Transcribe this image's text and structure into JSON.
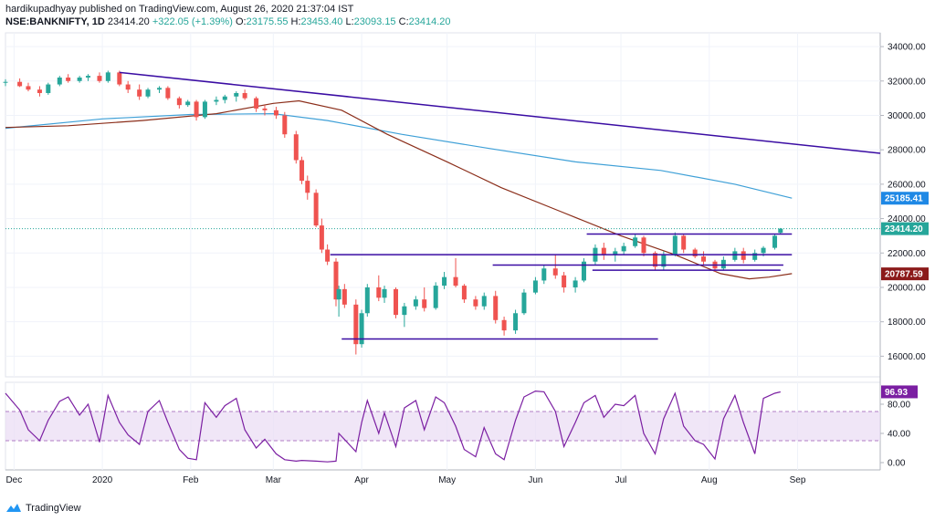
{
  "header": {
    "publisher_line": "hardikupadhyay published on TradingView.com, August 26, 2020 21:37:04 IST",
    "symbol_line": "NSE:BANKNIFTY, 1D",
    "last": "23414.20",
    "change": "+322.05 (+1.39%)",
    "o_label": "O:",
    "o": "23175.55",
    "h_label": "H:",
    "h": "23453.40",
    "l_label": "L:",
    "l": "23093.15",
    "c_label": "C:",
    "c": "23414.20"
  },
  "footer": {
    "brand": "TradingView"
  },
  "colors": {
    "up": "#26a69a",
    "down": "#ef5350",
    "ma_short": "#8b2e1a",
    "ma_long": "#3fa0d7",
    "trendline": "#3a0ca3",
    "rsi": "#7b1fa2",
    "rsi_band": "#e9dbf3"
  },
  "chart_data": [
    {
      "type": "candlestick",
      "title": "NSE:BANKNIFTY, 1D",
      "ylim": [
        14800,
        34800
      ],
      "y_ticks": [
        "16000.00",
        "18000.00",
        "20000.00",
        "22000.00",
        "24000.00",
        "26000.00",
        "28000.00",
        "30000.00",
        "32000.00",
        "34000.00"
      ],
      "x_ticks": [
        "Dec",
        "2020",
        "Feb",
        "Mar",
        "Apr",
        "May",
        "Jun",
        "Jul",
        "Aug",
        "Sep"
      ],
      "x_range": [
        "2019-11-28",
        "2020-09-30"
      ],
      "grid": true,
      "candles": [
        [
          "2019-11-28",
          31900,
          32100,
          31700,
          31950
        ],
        [
          "2019-12-03",
          31950,
          32150,
          31650,
          31700
        ],
        [
          "2019-12-06",
          31700,
          31900,
          31400,
          31500
        ],
        [
          "2019-12-10",
          31500,
          31700,
          31100,
          31300
        ],
        [
          "2019-12-13",
          31300,
          31900,
          31200,
          31800
        ],
        [
          "2019-12-17",
          31800,
          32300,
          31700,
          32200
        ],
        [
          "2019-12-20",
          32200,
          32400,
          31900,
          32000
        ],
        [
          "2019-12-24",
          32000,
          32300,
          31900,
          32200
        ],
        [
          "2019-12-27",
          32200,
          32400,
          32000,
          32300
        ],
        [
          "2019-12-31",
          32300,
          32500,
          31900,
          32000
        ],
        [
          "2020-01-03",
          32000,
          32600,
          31900,
          32500
        ],
        [
          "2020-01-07",
          32500,
          32600,
          31700,
          31800
        ],
        [
          "2020-01-10",
          31800,
          32000,
          31300,
          31500
        ],
        [
          "2020-01-14",
          31500,
          31800,
          30900,
          31100
        ],
        [
          "2020-01-17",
          31100,
          31600,
          31000,
          31500
        ],
        [
          "2020-01-21",
          31500,
          31700,
          31300,
          31600
        ],
        [
          "2020-01-24",
          31600,
          31700,
          30900,
          31000
        ],
        [
          "2020-01-28",
          31000,
          31100,
          30400,
          30600
        ],
        [
          "2020-01-31",
          30600,
          30900,
          30500,
          30800
        ],
        [
          "2020-02-03",
          30800,
          30900,
          29700,
          29900
        ],
        [
          "2020-02-06",
          29900,
          30900,
          29800,
          30800
        ],
        [
          "2020-02-10",
          30800,
          31100,
          30600,
          30900
        ],
        [
          "2020-02-13",
          30900,
          31200,
          30700,
          31100
        ],
        [
          "2020-02-17",
          31100,
          31400,
          30800,
          31300
        ],
        [
          "2020-02-20",
          31300,
          31500,
          30900,
          31000
        ],
        [
          "2020-02-24",
          31000,
          31100,
          30200,
          30400
        ],
        [
          "2020-02-27",
          30400,
          30600,
          30000,
          30300
        ],
        [
          "2020-03-02",
          30300,
          30500,
          29800,
          30000
        ],
        [
          "2020-03-05",
          30000,
          30200,
          28700,
          28900
        ],
        [
          "2020-03-09",
          28900,
          29100,
          27200,
          27400
        ],
        [
          "2020-03-11",
          27400,
          27600,
          26000,
          26200
        ],
        [
          "2020-03-13",
          26200,
          26500,
          25100,
          25500
        ],
        [
          "2020-03-16",
          25500,
          25700,
          23500,
          23600
        ],
        [
          "2020-03-18",
          23600,
          24000,
          22000,
          22200
        ],
        [
          "2020-03-20",
          22200,
          22500,
          21300,
          21500
        ],
        [
          "2020-03-23",
          21500,
          21700,
          18900,
          19300
        ],
        [
          "2020-03-24",
          19300,
          20100,
          18300,
          19900
        ],
        [
          "2020-03-26",
          19900,
          20200,
          18800,
          19000
        ],
        [
          "2020-03-30",
          19000,
          19300,
          16100,
          16700
        ],
        [
          "2020-04-01",
          16700,
          18700,
          16500,
          18500
        ],
        [
          "2020-04-03",
          18500,
          20200,
          18300,
          20000
        ],
        [
          "2020-04-07",
          20000,
          20700,
          19200,
          19400
        ],
        [
          "2020-04-09",
          19400,
          20100,
          19100,
          19900
        ],
        [
          "2020-04-13",
          19900,
          20000,
          18200,
          18400
        ],
        [
          "2020-04-16",
          18400,
          19100,
          17700,
          18900
        ],
        [
          "2020-04-20",
          18900,
          19500,
          18700,
          19300
        ],
        [
          "2020-04-23",
          19300,
          20000,
          18600,
          18800
        ],
        [
          "2020-04-27",
          18800,
          20300,
          18700,
          20100
        ],
        [
          "2020-04-30",
          20100,
          20900,
          19900,
          20600
        ],
        [
          "2020-05-04",
          20600,
          21700,
          20000,
          20100
        ],
        [
          "2020-05-07",
          20100,
          20200,
          19100,
          19300
        ],
        [
          "2020-05-11",
          19300,
          19500,
          18700,
          18900
        ],
        [
          "2020-05-14",
          18900,
          19700,
          18700,
          19500
        ],
        [
          "2020-05-18",
          19500,
          19800,
          17900,
          18100
        ],
        [
          "2020-05-21",
          18100,
          18300,
          17200,
          17500
        ],
        [
          "2020-05-25",
          17500,
          18700,
          17300,
          18500
        ],
        [
          "2020-05-28",
          18500,
          19900,
          18400,
          19700
        ],
        [
          "2020-06-01",
          19700,
          20600,
          19600,
          20400
        ],
        [
          "2020-06-04",
          20400,
          21300,
          20200,
          21100
        ],
        [
          "2020-06-08",
          21100,
          21900,
          20500,
          20700
        ],
        [
          "2020-06-11",
          20700,
          20900,
          19700,
          20000
        ],
        [
          "2020-06-15",
          20000,
          20600,
          19700,
          20400
        ],
        [
          "2020-06-18",
          20400,
          21700,
          20300,
          21500
        ],
        [
          "2020-06-22",
          21500,
          22500,
          21300,
          22300
        ],
        [
          "2020-06-25",
          22300,
          22600,
          21600,
          21900
        ],
        [
          "2020-06-29",
          21900,
          22300,
          21500,
          22100
        ],
        [
          "2020-07-02",
          22100,
          22600,
          21900,
          22400
        ],
        [
          "2020-07-06",
          22400,
          23100,
          22300,
          22900
        ],
        [
          "2020-07-09",
          22900,
          23000,
          21800,
          22000
        ],
        [
          "2020-07-13",
          22000,
          22100,
          21000,
          21200
        ],
        [
          "2020-07-16",
          21200,
          22100,
          21000,
          21900
        ],
        [
          "2020-07-20",
          21900,
          23200,
          21800,
          23000
        ],
        [
          "2020-07-23",
          23000,
          23100,
          22000,
          22200
        ],
        [
          "2020-07-27",
          22200,
          22300,
          21700,
          21800
        ],
        [
          "2020-07-30",
          21800,
          22100,
          21300,
          21500
        ],
        [
          "2020-08-03",
          21500,
          21600,
          20900,
          21100
        ],
        [
          "2020-08-06",
          21100,
          21800,
          21000,
          21600
        ],
        [
          "2020-08-10",
          21600,
          22300,
          21500,
          22100
        ],
        [
          "2020-08-13",
          22100,
          22300,
          21400,
          21600
        ],
        [
          "2020-08-17",
          21600,
          22200,
          21500,
          22000
        ],
        [
          "2020-08-20",
          22000,
          22400,
          21800,
          22300
        ],
        [
          "2020-08-24",
          22300,
          23100,
          22200,
          23000
        ],
        [
          "2020-08-26",
          23175.55,
          23453.4,
          23093.15,
          23414.2
        ]
      ],
      "ma_short_series": [
        [
          "2019-11-28",
          29300
        ],
        [
          "2019-12-20",
          29400
        ],
        [
          "2020-01-15",
          29700
        ],
        [
          "2020-02-10",
          30100
        ],
        [
          "2020-03-01",
          30700
        ],
        [
          "2020-03-10",
          30850
        ],
        [
          "2020-03-25",
          30300
        ],
        [
          "2020-04-10",
          28900
        ],
        [
          "2020-05-01",
          27300
        ],
        [
          "2020-05-20",
          25800
        ],
        [
          "2020-06-10",
          24400
        ],
        [
          "2020-07-01",
          23000
        ],
        [
          "2020-07-20",
          21900
        ],
        [
          "2020-08-05",
          20800
        ],
        [
          "2020-08-15",
          20500
        ],
        [
          "2020-08-22",
          20600
        ],
        [
          "2020-08-30",
          20800
        ]
      ],
      "ma_long_series": [
        [
          "2019-11-28",
          29250
        ],
        [
          "2020-01-01",
          29800
        ],
        [
          "2020-02-01",
          30050
        ],
        [
          "2020-03-01",
          30100
        ],
        [
          "2020-03-20",
          29700
        ],
        [
          "2020-04-15",
          28900
        ],
        [
          "2020-05-15",
          28100
        ],
        [
          "2020-06-15",
          27300
        ],
        [
          "2020-07-15",
          26800
        ],
        [
          "2020-08-10",
          26000
        ],
        [
          "2020-08-30",
          25185.41
        ]
      ],
      "lines": [
        {
          "name": "trendline",
          "from": [
            "2020-01-07",
            32500
          ],
          "to": [
            "2020-09-30",
            27800
          ]
        },
        {
          "name": "support",
          "from": [
            "2020-03-21",
            21900
          ],
          "to": [
            "2020-08-30",
            21900
          ]
        },
        {
          "name": "support",
          "from": [
            "2020-05-17",
            21300
          ],
          "to": [
            "2020-08-27",
            21300
          ]
        },
        {
          "name": "support",
          "from": [
            "2020-06-21",
            21000
          ],
          "to": [
            "2020-08-26",
            21000
          ]
        },
        {
          "name": "resistance",
          "from": [
            "2020-06-19",
            23100
          ],
          "to": [
            "2020-08-30",
            23100
          ]
        },
        {
          "name": "support",
          "from": [
            "2020-03-25",
            17000
          ],
          "to": [
            "2020-07-14",
            17000
          ]
        }
      ],
      "price_tags": [
        {
          "value": 25185.41,
          "text": "25185.41",
          "color": "#1e88e5"
        },
        {
          "value": 23414.2,
          "text": "23414.20",
          "color": "#26a69a"
        },
        {
          "value": 20787.59,
          "text": "20787.59",
          "color": "#8b1a1a"
        }
      ]
    },
    {
      "type": "line",
      "ylim": [
        -10,
        110
      ],
      "y_ticks": [
        "0.00",
        "40.00",
        "80.00"
      ],
      "band": [
        30,
        70
      ],
      "last_value": "96.93",
      "values": [
        [
          "2019-11-28",
          95
        ],
        [
          "2019-12-03",
          72
        ],
        [
          "2019-12-06",
          45
        ],
        [
          "2019-12-10",
          30
        ],
        [
          "2019-12-13",
          58
        ],
        [
          "2019-12-17",
          84
        ],
        [
          "2019-12-20",
          90
        ],
        [
          "2019-12-24",
          65
        ],
        [
          "2019-12-27",
          80
        ],
        [
          "2019-12-31",
          28
        ],
        [
          "2020-01-03",
          92
        ],
        [
          "2020-01-07",
          55
        ],
        [
          "2020-01-10",
          38
        ],
        [
          "2020-01-14",
          25
        ],
        [
          "2020-01-17",
          70
        ],
        [
          "2020-01-21",
          85
        ],
        [
          "2020-01-24",
          55
        ],
        [
          "2020-01-28",
          18
        ],
        [
          "2020-01-31",
          6
        ],
        [
          "2020-02-03",
          4
        ],
        [
          "2020-02-06",
          82
        ],
        [
          "2020-02-10",
          62
        ],
        [
          "2020-02-13",
          78
        ],
        [
          "2020-02-17",
          88
        ],
        [
          "2020-02-20",
          45
        ],
        [
          "2020-02-24",
          20
        ],
        [
          "2020-02-27",
          32
        ],
        [
          "2020-03-02",
          12
        ],
        [
          "2020-03-05",
          4
        ],
        [
          "2020-03-09",
          2
        ],
        [
          "2020-03-11",
          3
        ],
        [
          "2020-03-16",
          2
        ],
        [
          "2020-03-20",
          1
        ],
        [
          "2020-03-23",
          2
        ],
        [
          "2020-03-24",
          40
        ],
        [
          "2020-03-30",
          15
        ],
        [
          "2020-04-01",
          55
        ],
        [
          "2020-04-03",
          85
        ],
        [
          "2020-04-07",
          40
        ],
        [
          "2020-04-09",
          68
        ],
        [
          "2020-04-13",
          22
        ],
        [
          "2020-04-16",
          75
        ],
        [
          "2020-04-20",
          85
        ],
        [
          "2020-04-23",
          45
        ],
        [
          "2020-04-27",
          90
        ],
        [
          "2020-04-30",
          82
        ],
        [
          "2020-05-04",
          50
        ],
        [
          "2020-05-07",
          18
        ],
        [
          "2020-05-11",
          8
        ],
        [
          "2020-05-14",
          48
        ],
        [
          "2020-05-18",
          12
        ],
        [
          "2020-05-21",
          4
        ],
        [
          "2020-05-25",
          58
        ],
        [
          "2020-05-28",
          90
        ],
        [
          "2020-06-01",
          98
        ],
        [
          "2020-06-04",
          97
        ],
        [
          "2020-06-08",
          70
        ],
        [
          "2020-06-11",
          22
        ],
        [
          "2020-06-15",
          55
        ],
        [
          "2020-06-18",
          82
        ],
        [
          "2020-06-22",
          92
        ],
        [
          "2020-06-25",
          62
        ],
        [
          "2020-06-29",
          80
        ],
        [
          "2020-07-02",
          78
        ],
        [
          "2020-07-06",
          92
        ],
        [
          "2020-07-09",
          40
        ],
        [
          "2020-07-13",
          12
        ],
        [
          "2020-07-16",
          60
        ],
        [
          "2020-07-20",
          95
        ],
        [
          "2020-07-23",
          50
        ],
        [
          "2020-07-27",
          30
        ],
        [
          "2020-07-30",
          25
        ],
        [
          "2020-08-03",
          5
        ],
        [
          "2020-08-06",
          60
        ],
        [
          "2020-08-10",
          92
        ],
        [
          "2020-08-13",
          55
        ],
        [
          "2020-08-17",
          12
        ],
        [
          "2020-08-20",
          88
        ],
        [
          "2020-08-24",
          95
        ],
        [
          "2020-08-26",
          96.93
        ]
      ]
    }
  ]
}
